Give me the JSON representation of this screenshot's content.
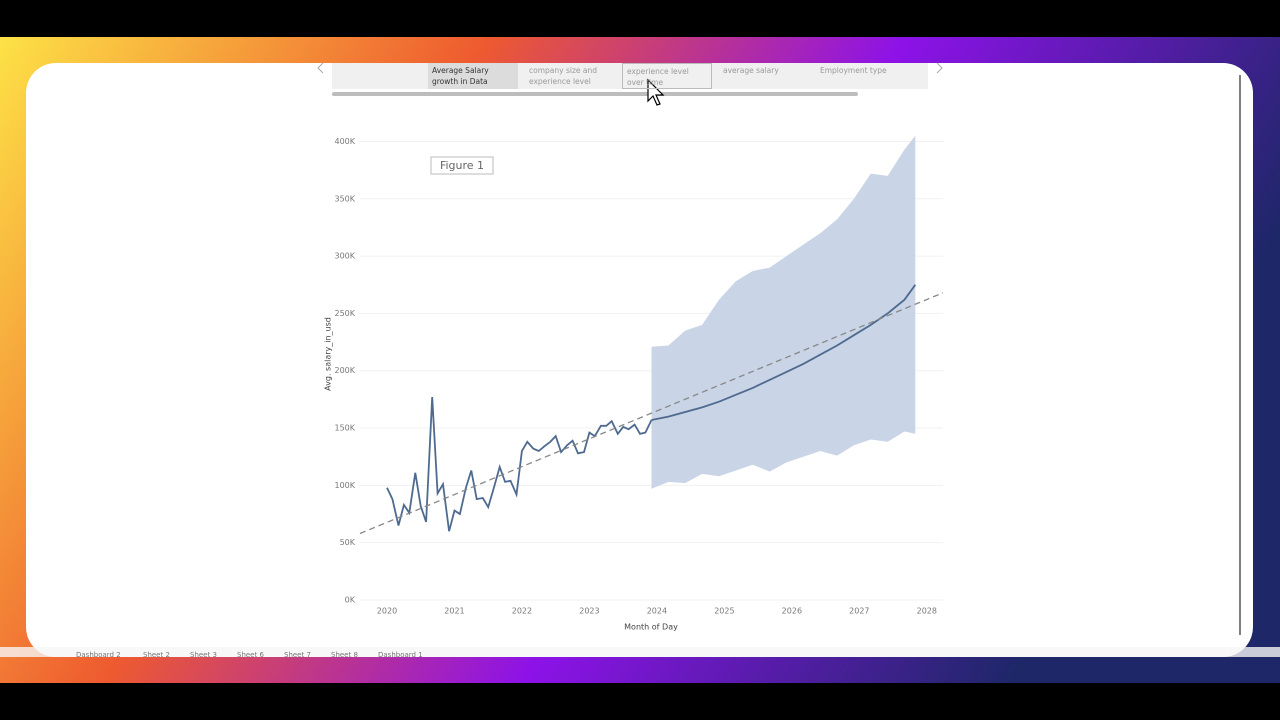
{
  "tabs": [
    {
      "label": "Average Salary growth in Data Science",
      "selected": true
    },
    {
      "label": "company size and experience level"
    },
    {
      "label": "experience level over time"
    },
    {
      "label": "average salary"
    },
    {
      "label": "Employment type"
    }
  ],
  "sheet_tabs": [
    "Dashboard 2",
    "Sheet 2",
    "Sheet 3",
    "Sheet 6",
    "Sheet 7",
    "Sheet 8",
    "Dashboard 1"
  ],
  "chart_data": {
    "type": "line",
    "annotation": "Figure 1",
    "x_label": "Month of Day",
    "y_label": "Avg. salary_in_usd",
    "xlim": [
      2019.6,
      2028.24
    ],
    "xticks": [
      2020,
      2021,
      2022,
      2023,
      2024,
      2025,
      2026,
      2027,
      2028
    ],
    "ylim": [
      0,
      410000
    ],
    "yticks": [
      {
        "value": 0,
        "label": "0K"
      },
      {
        "value": 50000,
        "label": "50K"
      },
      {
        "value": 100000,
        "label": "100K"
      },
      {
        "value": 150000,
        "label": "150K"
      },
      {
        "value": 200000,
        "label": "200K"
      },
      {
        "value": 250000,
        "label": "250K"
      },
      {
        "value": 300000,
        "label": "300K"
      },
      {
        "value": 350000,
        "label": "350K"
      },
      {
        "value": 400000,
        "label": "400K"
      }
    ],
    "grid": true,
    "series": [
      {
        "color": "#4e6a8f",
        "x": [
          2020.0,
          2020.08,
          2020.17,
          2020.25,
          2020.33,
          2020.42,
          2020.5,
          2020.58,
          2020.67,
          2020.75,
          2020.83,
          2020.92,
          2021.0,
          2021.08,
          2021.17,
          2021.25,
          2021.33,
          2021.42,
          2021.5,
          2021.58,
          2021.67,
          2021.75,
          2021.83,
          2021.92,
          2022.0,
          2022.08,
          2022.17,
          2022.25,
          2022.33,
          2022.42,
          2022.5,
          2022.58,
          2022.67,
          2022.75,
          2022.83,
          2022.92,
          2023.0,
          2023.08,
          2023.17,
          2023.25,
          2023.33,
          2023.42,
          2023.5,
          2023.58,
          2023.67,
          2023.75,
          2023.83,
          2023.92
        ],
        "values": [
          98000,
          88000,
          65000,
          83000,
          76000,
          111000,
          82000,
          68000,
          177000,
          93000,
          101000,
          60000,
          78000,
          75000,
          98000,
          113000,
          88000,
          89000,
          81000,
          97000,
          116000,
          103000,
          104000,
          92000,
          130000,
          138000,
          132000,
          130000,
          134000,
          138000,
          143000,
          129000,
          135000,
          139000,
          128000,
          129000,
          146000,
          143000,
          152000,
          152000,
          156000,
          145000,
          151000,
          149000,
          153000,
          145000,
          146000,
          157000
        ]
      },
      {
        "color": "#4e6a8f",
        "band_color": "#c9d4e6",
        "x": [
          2023.92,
          2024.17,
          2024.42,
          2024.67,
          2024.92,
          2025.17,
          2025.42,
          2025.67,
          2025.92,
          2026.17,
          2026.42,
          2026.67,
          2026.92,
          2027.17,
          2027.42,
          2027.67,
          2027.83
        ],
        "values": [
          157000,
          160000,
          164000,
          168000,
          173000,
          179000,
          185000,
          192000,
          199000,
          206000,
          214000,
          222000,
          231000,
          240000,
          250000,
          262000,
          275000
        ],
        "upper": [
          221000,
          222000,
          235000,
          240000,
          262000,
          278000,
          287000,
          290000,
          300000,
          310000,
          320000,
          332000,
          350000,
          372000,
          370000,
          393000,
          405000
        ],
        "lower": [
          97000,
          103000,
          102000,
          110000,
          108000,
          113000,
          118000,
          112000,
          120000,
          125000,
          130000,
          126000,
          135000,
          140000,
          138000,
          147000,
          145000
        ]
      },
      {
        "color": "#888888",
        "dashed": true,
        "x": [
          2019.6,
          2028.24
        ],
        "values": [
          58000,
          268000
        ]
      }
    ]
  }
}
